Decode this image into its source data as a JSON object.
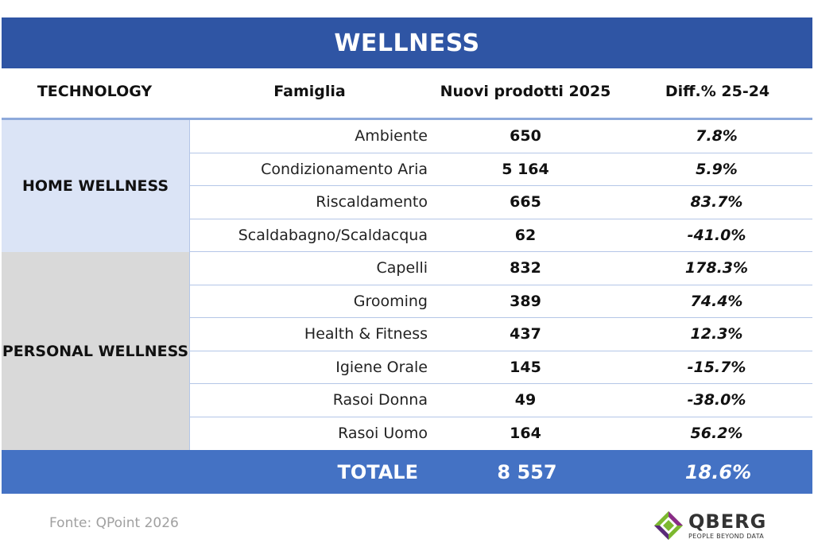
{
  "title": "WELLNESS",
  "headers": {
    "technology": "TECHNOLOGY",
    "famiglia": "Famiglia",
    "nuovi": "Nuovi prodotti 2025",
    "diff": "Diff.% 25-24"
  },
  "groups": [
    {
      "name": "HOME WELLNESS",
      "color": "#dbe4f6",
      "rows": [
        {
          "famiglia": "Ambiente",
          "nuovi": "650",
          "diff": "7.8%"
        },
        {
          "famiglia": "Condizionamento Aria",
          "nuovi": "5 164",
          "diff": "5.9%"
        },
        {
          "famiglia": "Riscaldamento",
          "nuovi": "665",
          "diff": "83.7%"
        },
        {
          "famiglia": "Scaldabagno/Scaldacqua",
          "nuovi": "62",
          "diff": "-41.0%"
        }
      ]
    },
    {
      "name": "PERSONAL WELLNESS",
      "color": "#d9d9d9",
      "rows": [
        {
          "famiglia": "Capelli",
          "nuovi": "832",
          "diff": "178.3%"
        },
        {
          "famiglia": "Grooming",
          "nuovi": "389",
          "diff": "74.4%"
        },
        {
          "famiglia": "Health & Fitness",
          "nuovi": "437",
          "diff": "12.3%"
        },
        {
          "famiglia": "Igiene Orale",
          "nuovi": "145",
          "diff": "-15.7%"
        },
        {
          "famiglia": "Rasoi Donna",
          "nuovi": "49",
          "diff": "-38.0%"
        },
        {
          "famiglia": "Rasoi Uomo",
          "nuovi": "164",
          "diff": "56.2%"
        }
      ]
    }
  ],
  "total": {
    "label": "TOTALE",
    "nuovi": "8 557",
    "diff": "18.6%"
  },
  "source": "Fonte: QPoint 2026",
  "logo": {
    "brand": "QBERG",
    "tagline": "PEOPLE BEYOND DATA",
    "icon": "qberg-diamond-logo"
  },
  "colors": {
    "title_bg": "#2f55a4",
    "total_bg": "#4472c4",
    "rule": "#8eaadb"
  }
}
